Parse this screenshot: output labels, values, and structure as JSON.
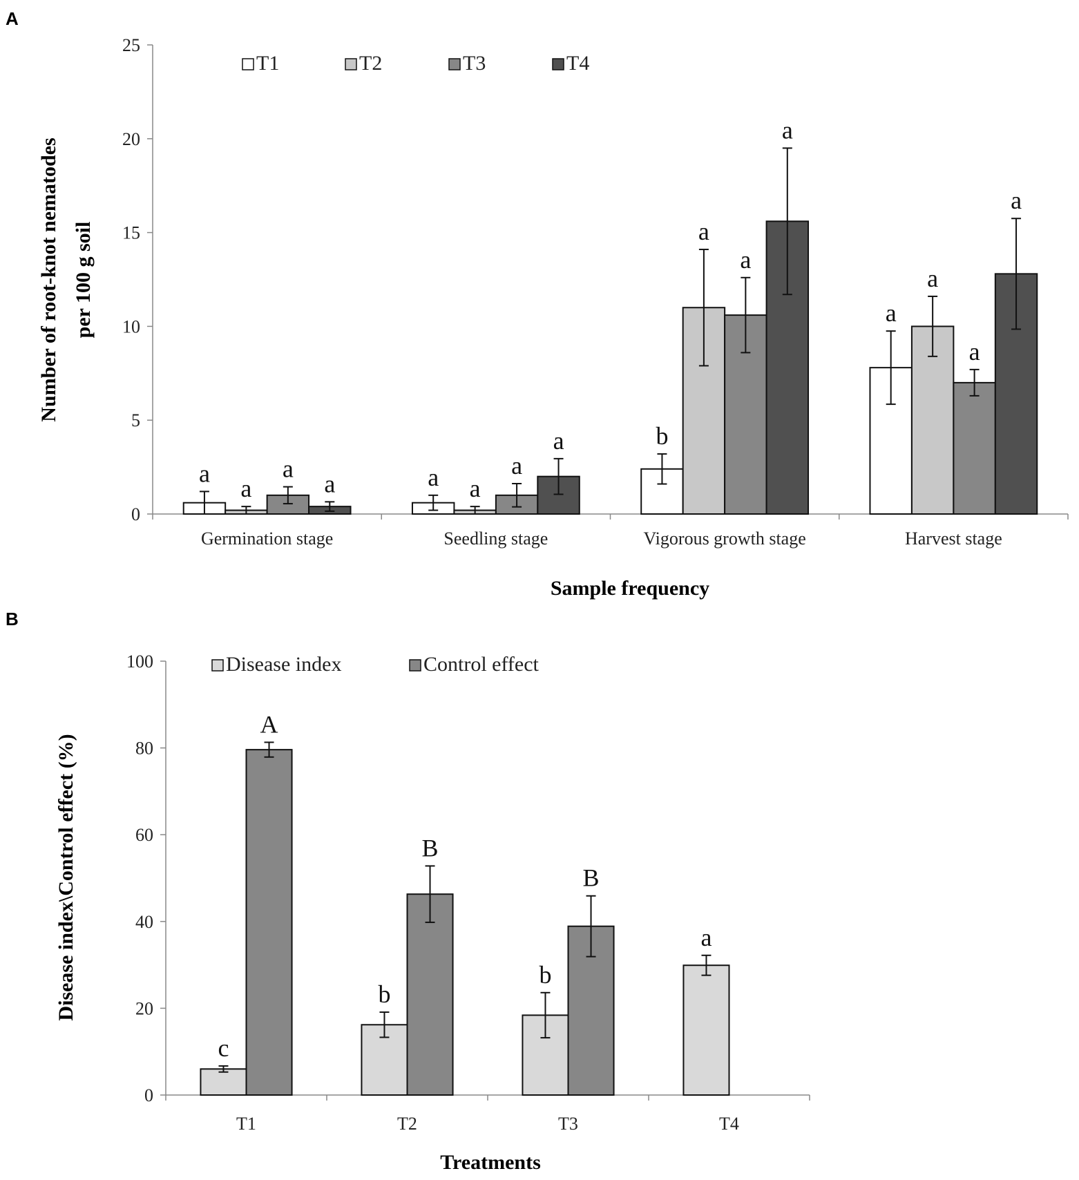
{
  "chart_data": [
    {
      "panel": "A",
      "type": "bar",
      "ylabel_line1": "Number of root-knot nematodes",
      "ylabel_line2": "per 100 g soil",
      "xlabel": "Sample frequency",
      "ylim": [
        0,
        25
      ],
      "yticks": [
        0,
        5,
        10,
        15,
        20,
        25
      ],
      "categories": [
        "Germination stage",
        "Seedling stage",
        "Vigorous growth stage",
        "Harvest stage"
      ],
      "series": [
        {
          "name": "T1",
          "color": "#ffffff",
          "values": [
            0.6,
            0.6,
            2.4,
            7.8
          ],
          "errors": [
            0.6,
            0.4,
            0.8,
            1.95
          ],
          "letters": [
            "a",
            "a",
            "b",
            "a"
          ]
        },
        {
          "name": "T2",
          "color": "#c8c8c8",
          "values": [
            0.2,
            0.2,
            11.0,
            10.0
          ],
          "errors": [
            0.2,
            0.2,
            3.1,
            1.6
          ],
          "letters": [
            "a",
            "a",
            "a",
            "a"
          ]
        },
        {
          "name": "T3",
          "color": "#878787",
          "values": [
            1.0,
            1.0,
            10.6,
            7.0
          ],
          "errors": [
            0.45,
            0.62,
            2.0,
            0.7
          ],
          "letters": [
            "a",
            "a",
            "a",
            "a"
          ]
        },
        {
          "name": "T4",
          "color": "#505050",
          "values": [
            0.4,
            2.0,
            15.6,
            12.8
          ],
          "errors": [
            0.25,
            0.95,
            3.9,
            2.95
          ],
          "letters": [
            "a",
            "a",
            "a",
            "a"
          ]
        }
      ]
    },
    {
      "panel": "B",
      "type": "bar",
      "ylabel": "Disease index\\Control effect (%)",
      "xlabel": "Treatments",
      "ylim": [
        0,
        100
      ],
      "yticks": [
        0,
        20,
        40,
        60,
        80,
        100
      ],
      "categories": [
        "T1",
        "T2",
        "T3",
        "T4"
      ],
      "series": [
        {
          "name": "Disease index",
          "color": "#d9d9d9",
          "values": [
            6.0,
            16.2,
            18.4,
            29.9
          ],
          "errors": [
            0.7,
            2.9,
            5.2,
            2.3
          ],
          "letters": [
            "c",
            "b",
            "b",
            "a"
          ]
        },
        {
          "name": "Control effect",
          "color": "#878787",
          "values": [
            79.6,
            46.3,
            38.9,
            null
          ],
          "errors": [
            1.7,
            6.5,
            7.0,
            null
          ],
          "letters": [
            "A",
            "B",
            "B",
            ""
          ]
        }
      ]
    }
  ]
}
